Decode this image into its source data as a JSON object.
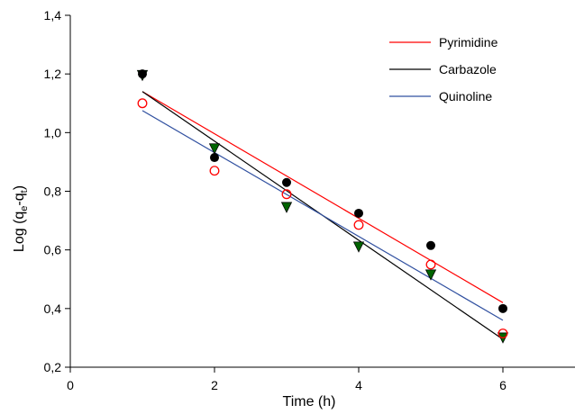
{
  "chart_data": {
    "type": "scatter",
    "title": "",
    "xlabel": "Time (h)",
    "ylabel": {
      "prefix": "Log (q",
      "sub1": "e",
      "mid": "-q",
      "sub2": "t",
      "suffix": ")"
    },
    "xlim": [
      0,
      7
    ],
    "ylim": [
      0.2,
      1.4
    ],
    "x_ticks": [
      0,
      2,
      4,
      6
    ],
    "x_tick_labels": [
      "0",
      "2",
      "4",
      "6"
    ],
    "y_ticks": [
      0.2,
      0.4,
      0.6,
      0.8,
      1.0,
      1.2,
      1.4
    ],
    "y_tick_labels": [
      "0,2",
      "0,4",
      "0,6",
      "0,8",
      "1,0",
      "1,2",
      "1,4"
    ],
    "grid": false,
    "legend_position": "top-right",
    "series": [
      {
        "name": "Pyrimidine",
        "color": "#ff0000",
        "marker": "open-circle",
        "points": [
          [
            1,
            1.1
          ],
          [
            2,
            0.87
          ],
          [
            3,
            0.79
          ],
          [
            4,
            0.685
          ],
          [
            5,
            0.55
          ],
          [
            6,
            0.315
          ]
        ],
        "fit": [
          [
            1,
            1.14
          ],
          [
            6,
            0.42
          ]
        ]
      },
      {
        "name": "Carbazole",
        "color": "#000000",
        "marker": "filled-circle",
        "points": [
          [
            1,
            1.2
          ],
          [
            2,
            0.915
          ],
          [
            3,
            0.83
          ],
          [
            4,
            0.725
          ],
          [
            5,
            0.615
          ],
          [
            6,
            0.4
          ]
        ],
        "fit": [
          [
            1,
            1.14
          ],
          [
            6,
            0.295
          ]
        ]
      },
      {
        "name": "Quinoline",
        "color": "#3050a0",
        "marker": "filled-triangle-down",
        "points": [
          [
            1,
            1.195
          ],
          [
            2,
            0.945
          ],
          [
            3,
            0.745
          ],
          [
            4,
            0.61
          ],
          [
            5,
            0.515
          ],
          [
            6,
            0.3
          ]
        ],
        "fit": [
          [
            1,
            1.075
          ],
          [
            6,
            0.36
          ]
        ]
      }
    ],
    "triangle_fill": "#006400"
  }
}
